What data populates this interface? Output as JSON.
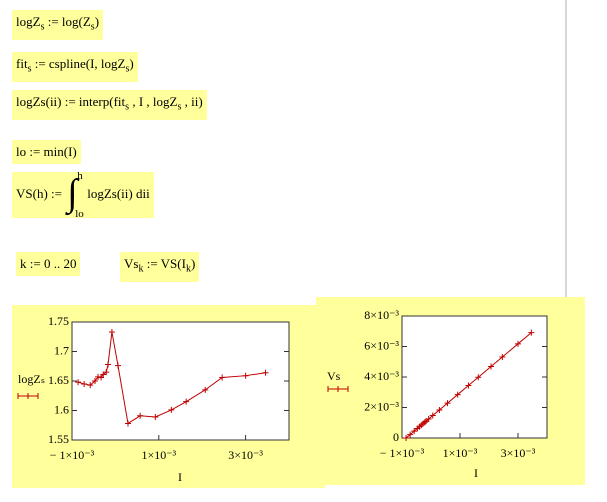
{
  "worksheet": {
    "expressions": [
      [
        "logZ",
        {
          "sub": "s"
        },
        " := log(Z",
        {
          "sub": "s"
        },
        ")"
      ],
      [
        "fit",
        {
          "sub": "s"
        },
        " := cspline(I, logZ",
        {
          "sub": "s"
        },
        ")"
      ],
      [
        "logZs(ii) := interp(fit",
        {
          "sub": "s"
        },
        " , I , logZ",
        {
          "sub": "s"
        },
        " , ii)"
      ],
      [
        "lo := min(I)"
      ],
      [
        "VS(h) := ",
        {
          "upper": "h",
          "lower": "lo"
        },
        "logZs(ii) dii"
      ],
      [
        "k := 0 .. 20"
      ],
      [
        "Vs",
        {
          "sub": "k"
        },
        " := VS(I",
        {
          "sub": "k"
        },
        ")"
      ]
    ]
  },
  "chart_data": [
    {
      "type": "line",
      "x_label": "I",
      "y_label": "logZₛ",
      "color": "#c00000",
      "xlim": [
        -0.001,
        0.004
      ],
      "ylim": [
        1.55,
        1.75
      ],
      "xticks": [
        {
          "value": -0.001,
          "label": "− 1×10⁻³"
        },
        {
          "value": 0.001,
          "label": "1×10⁻³"
        },
        {
          "value": 0.003,
          "label": "3×10⁻³"
        }
      ],
      "yticks": [
        1.55,
        1.6,
        1.65,
        1.7,
        1.75
      ],
      "x": [
        -0.00086,
        -0.00072,
        -0.00058,
        -0.00047,
        -0.0004,
        -0.00033,
        -0.00028,
        -0.00021,
        -0.00017,
        -8e-05,
        6e-05,
        0.00029,
        0.00057,
        0.00092,
        0.00129,
        0.00163,
        0.00207,
        0.00246,
        0.003,
        0.00346
      ],
      "values": [
        1.648,
        1.645,
        1.643,
        1.65,
        1.657,
        1.656,
        1.661,
        1.665,
        1.678,
        1.733,
        1.676,
        1.578,
        1.591,
        1.589,
        1.601,
        1.615,
        1.635,
        1.656,
        1.659,
        1.664
      ]
    },
    {
      "type": "line",
      "x_label": "I",
      "y_label": "Vs",
      "color": "#c00000",
      "xlim": [
        -0.001,
        0.004
      ],
      "ylim": [
        0,
        0.008
      ],
      "xticks": [
        {
          "value": -0.001,
          "label": "− 1×10⁻³"
        },
        {
          "value": 0.001,
          "label": "1×10⁻³"
        },
        {
          "value": 0.003,
          "label": "3×10⁻³"
        }
      ],
      "yticks": [
        0,
        {
          "value": 0.002,
          "label": "2×10⁻³"
        },
        {
          "value": 0.004,
          "label": "4×10⁻³"
        },
        {
          "value": 0.006,
          "label": "6×10⁻³"
        },
        {
          "value": 0.008,
          "label": "8×10⁻³"
        }
      ],
      "x": [
        -0.00086,
        -0.00072,
        -0.00058,
        -0.00047,
        -0.0004,
        -0.00033,
        -0.00028,
        -0.00021,
        -0.00017,
        -8e-05,
        6e-05,
        0.00029,
        0.00057,
        0.00092,
        0.00129,
        0.00163,
        0.00207,
        0.00246,
        0.003,
        0.00346
      ],
      "values": [
        0,
        0.000224,
        0.000448,
        0.000624,
        0.000736,
        0.000848,
        0.000928,
        0.00104,
        0.001104,
        0.001248,
        0.001472,
        0.00184,
        0.002288,
        0.002848,
        0.00344,
        0.003984,
        0.004688,
        0.005312,
        0.006176,
        0.006912
      ]
    }
  ]
}
